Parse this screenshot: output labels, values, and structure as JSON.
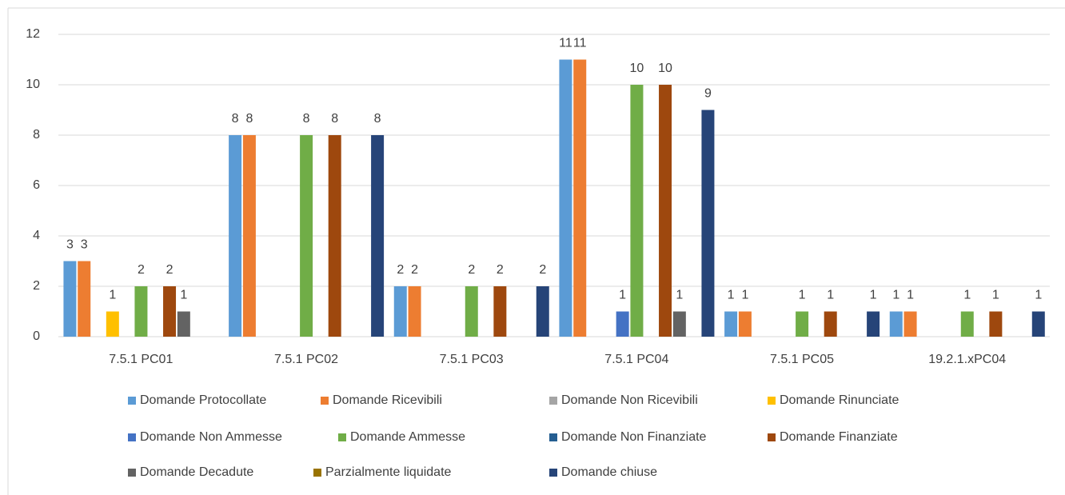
{
  "chart_data": {
    "type": "bar",
    "categories": [
      "7.5.1 PC01",
      "7.5.1 PC02",
      "7.5.1 PC03",
      "7.5.1 PC04",
      "7.5.1 PC05",
      "19.2.1.xPC04"
    ],
    "series": [
      {
        "name": "Domande Protocollate",
        "color": "#5b9bd5",
        "values": [
          3,
          8,
          2,
          11,
          1,
          1
        ]
      },
      {
        "name": "Domande Ricevibili",
        "color": "#ed7d31",
        "values": [
          3,
          8,
          2,
          11,
          1,
          1
        ]
      },
      {
        "name": "Domande Non Ricevibili",
        "color": "#a5a5a5",
        "values": [
          null,
          null,
          null,
          null,
          null,
          null
        ]
      },
      {
        "name": "Domande Rinunciate",
        "color": "#ffc000",
        "values": [
          1,
          null,
          null,
          null,
          null,
          null
        ]
      },
      {
        "name": "Domande Non Ammesse",
        "color": "#4472c4",
        "values": [
          null,
          null,
          null,
          1,
          null,
          null
        ]
      },
      {
        "name": "Domande Ammesse",
        "color": "#70ad47",
        "values": [
          2,
          8,
          2,
          10,
          1,
          1
        ]
      },
      {
        "name": "Domande Non Finanziate",
        "color": "#255e91",
        "values": [
          null,
          null,
          null,
          null,
          null,
          null
        ]
      },
      {
        "name": "Domande Finanziate",
        "color": "#9e480e",
        "values": [
          2,
          8,
          2,
          10,
          1,
          1
        ]
      },
      {
        "name": "Domande Decadute",
        "color": "#636363",
        "values": [
          1,
          null,
          null,
          1,
          null,
          null
        ]
      },
      {
        "name": "Parzialmente liquidate",
        "color": "#997300",
        "values": [
          null,
          null,
          null,
          null,
          null,
          null
        ]
      },
      {
        "name": "Domande chiuse",
        "color": "#264478",
        "values": [
          null,
          8,
          2,
          9,
          1,
          1
        ]
      }
    ],
    "ylim": [
      0,
      12
    ],
    "yticks": [
      0,
      2,
      4,
      6,
      8,
      10,
      12
    ],
    "grid": true,
    "legend": "bottom"
  }
}
